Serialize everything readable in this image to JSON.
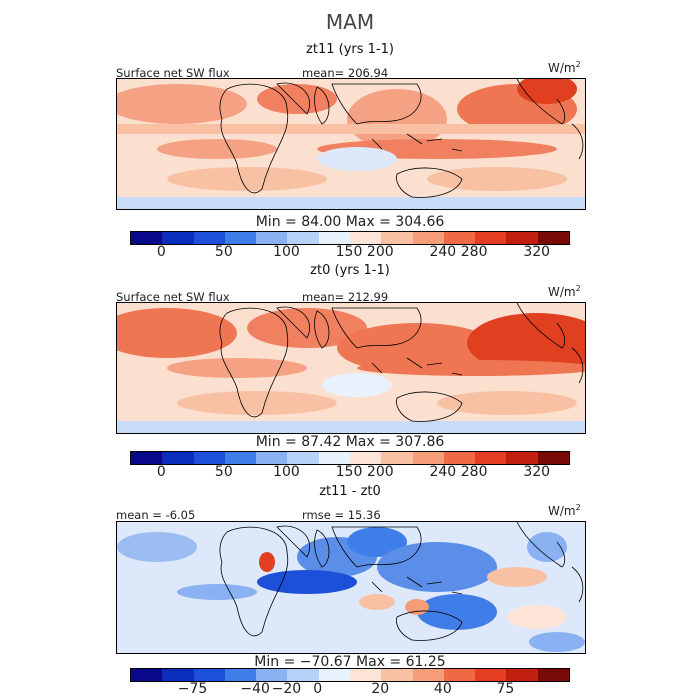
{
  "season": "MAM",
  "units": {
    "base": "W/m",
    "exp": "2"
  },
  "panels": [
    {
      "title": "zt11 (yrs 1-1)",
      "left_label": "Surface net SW flux",
      "mid_label": "mean= 206.94",
      "minmax": "Min =  84.00  Max = 304.66",
      "ticks": [
        "0",
        "50",
        "100",
        "150",
        "200",
        "240",
        "280",
        "320"
      ],
      "colors": [
        "#08088a",
        "#0b2dbb",
        "#1c50d8",
        "#3f7ee8",
        "#8ab2f2",
        "#b7d2f8",
        "#e8f2fc",
        "#fde4d6",
        "#f9c1a4",
        "#f59c79",
        "#ef6a44",
        "#e33e22",
        "#c0200d",
        "#7a0a05"
      ],
      "mean_value": 206.94,
      "min_value": 84.0,
      "max_value": 304.66
    },
    {
      "title": "zt0 (yrs 1-1)",
      "left_label": "Surface net SW flux",
      "mid_label": "mean= 212.99",
      "minmax": "Min =  87.42  Max = 307.86",
      "ticks": [
        "0",
        "50",
        "100",
        "150",
        "200",
        "240",
        "280",
        "320"
      ],
      "colors": [
        "#08088a",
        "#0b2dbb",
        "#1c50d8",
        "#3f7ee8",
        "#8ab2f2",
        "#b7d2f8",
        "#e8f2fc",
        "#fde4d6",
        "#f9c1a4",
        "#f59c79",
        "#ef6a44",
        "#e33e22",
        "#c0200d",
        "#7a0a05"
      ],
      "mean_value": 212.99,
      "min_value": 87.42,
      "max_value": 307.86
    },
    {
      "title": "zt11 - zt0",
      "left_label": "mean =  -6.05",
      "mid_label": "rmse =  15.36",
      "minmax": "Min = −70.67  Max =  61.25",
      "ticks": [
        "−75",
        "−40",
        "−20",
        "0",
        "20",
        "40",
        "75"
      ],
      "colors": [
        "#08088a",
        "#0b2dbb",
        "#1c50d8",
        "#3f7ee8",
        "#8ab2f2",
        "#b7d2f8",
        "#e8f2fc",
        "#fde4d6",
        "#f9c1a4",
        "#f59c79",
        "#ef6a44",
        "#e33e22",
        "#c0200d",
        "#7a0a05"
      ],
      "mean_value": -6.05,
      "rmse_value": 15.36,
      "min_value": -70.67,
      "max_value": 61.25
    }
  ]
}
